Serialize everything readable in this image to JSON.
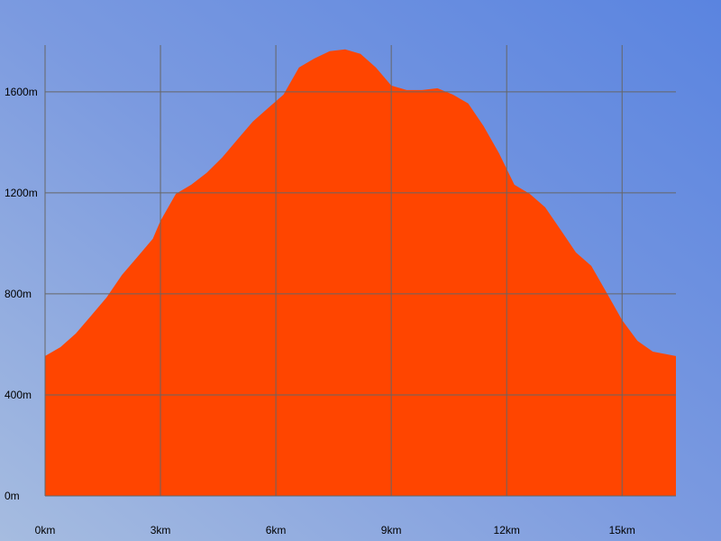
{
  "chart_data": {
    "type": "area",
    "x": [
      0,
      0.4,
      0.8,
      1.2,
      1.6,
      2.0,
      2.4,
      2.8,
      3.0,
      3.4,
      3.8,
      4.2,
      4.6,
      5.0,
      5.4,
      5.8,
      6.2,
      6.6,
      7.0,
      7.4,
      7.8,
      8.2,
      8.6,
      9.0,
      9.4,
      9.8,
      10.2,
      10.6,
      11.0,
      11.4,
      11.8,
      12.2,
      12.6,
      13.0,
      13.4,
      13.8,
      14.2,
      14.6,
      15.0,
      15.4,
      15.8,
      16.4
    ],
    "values": [
      554,
      589,
      643,
      714,
      786,
      875,
      946,
      1018,
      1089,
      1196,
      1232,
      1279,
      1339,
      1411,
      1482,
      1536,
      1589,
      1696,
      1732,
      1761,
      1768,
      1750,
      1696,
      1625,
      1607,
      1607,
      1614,
      1589,
      1554,
      1464,
      1357,
      1232,
      1196,
      1143,
      1054,
      964,
      911,
      804,
      696,
      614,
      571,
      554
    ],
    "color": "#ff4500",
    "xlim": [
      0,
      16.4
    ],
    "ylim": [
      0,
      1785
    ],
    "xticks": [
      {
        "value": 0,
        "label": "0km"
      },
      {
        "value": 3,
        "label": "3km"
      },
      {
        "value": 6,
        "label": "6km"
      },
      {
        "value": 9,
        "label": "9km"
      },
      {
        "value": 12,
        "label": "12km"
      },
      {
        "value": 15,
        "label": "15km"
      }
    ],
    "yticks": [
      {
        "value": 0,
        "label": "0m"
      },
      {
        "value": 400,
        "label": "400m"
      },
      {
        "value": 800,
        "label": "800m"
      },
      {
        "value": 1200,
        "label": "1200m"
      },
      {
        "value": 1600,
        "label": "1600m"
      }
    ],
    "grid": true
  }
}
